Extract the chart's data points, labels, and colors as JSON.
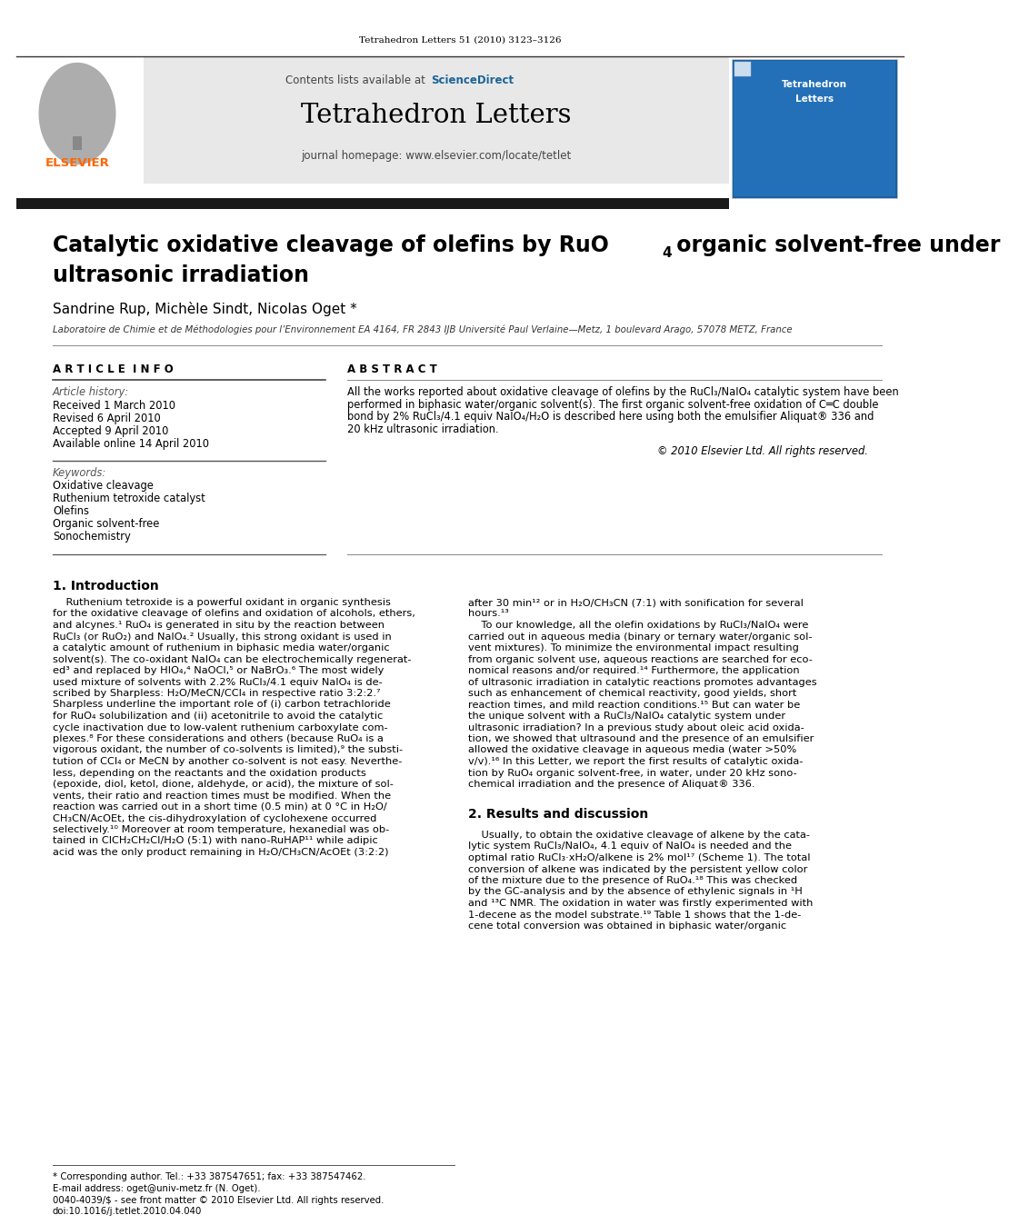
{
  "page_width": 9.92,
  "page_height": 13.23,
  "bg_color": "#ffffff",
  "top_citation": "Tetrahedron Letters 51 (2010) 3123–3126",
  "header_bg": "#e8e8e8",
  "header_contents": "Contents lists available at",
  "header_sciencedirect": "ScienceDirect",
  "header_journal": "Tetrahedron Letters",
  "header_homepage": "journal homepage: www.elsevier.com/locate/tetlet",
  "thick_bar_color": "#1a1a1a",
  "article_title_line1": "Catalytic oxidative cleavage of olefins by RuO",
  "article_title_sub": "4",
  "article_title_line2": "ultrasonic irradiation",
  "authors": "Sandrine Rup, Michèle Sindt, Nicolas Oget *",
  "affiliation": "Laboratoire de Chimie et de Méthodologies pour l’Environnement EA 4164, FR 2843 IJB Université Paul Verlaine—Metz, 1 boulevard Arago, 57078 METZ, France",
  "article_info_title": "A R T I C L E  I N F O",
  "abstract_title": "A B S T R A C T",
  "article_history_label": "Article history:",
  "received": "Received 1 March 2010",
  "revised": "Revised 6 April 2010",
  "accepted": "Accepted 9 April 2010",
  "available": "Available online 14 April 2010",
  "keywords_label": "Keywords:",
  "keywords": [
    "Oxidative cleavage",
    "Ruthenium tetroxide catalyst",
    "Olefins",
    "Organic solvent-free",
    "Sonochemistry"
  ],
  "copyright": "© 2010 Elsevier Ltd. All rights reserved.",
  "section1_title": "1. Introduction",
  "section2_title": "2. Results and discussion",
  "footer_note": "* Corresponding author. Tel.: +33 387547651; fax: +33 387547462.",
  "footer_email": "E-mail address: oget@univ-metz.fr (N. Oget).",
  "footer_line2": "0040-4039/$ - see front matter © 2010 Elsevier Ltd. All rights reserved.",
  "footer_doi": "doi:10.1016/j.tetlet.2010.04.040",
  "elsevier_color": "#ff6600",
  "sciencedirect_color": "#1a6496"
}
